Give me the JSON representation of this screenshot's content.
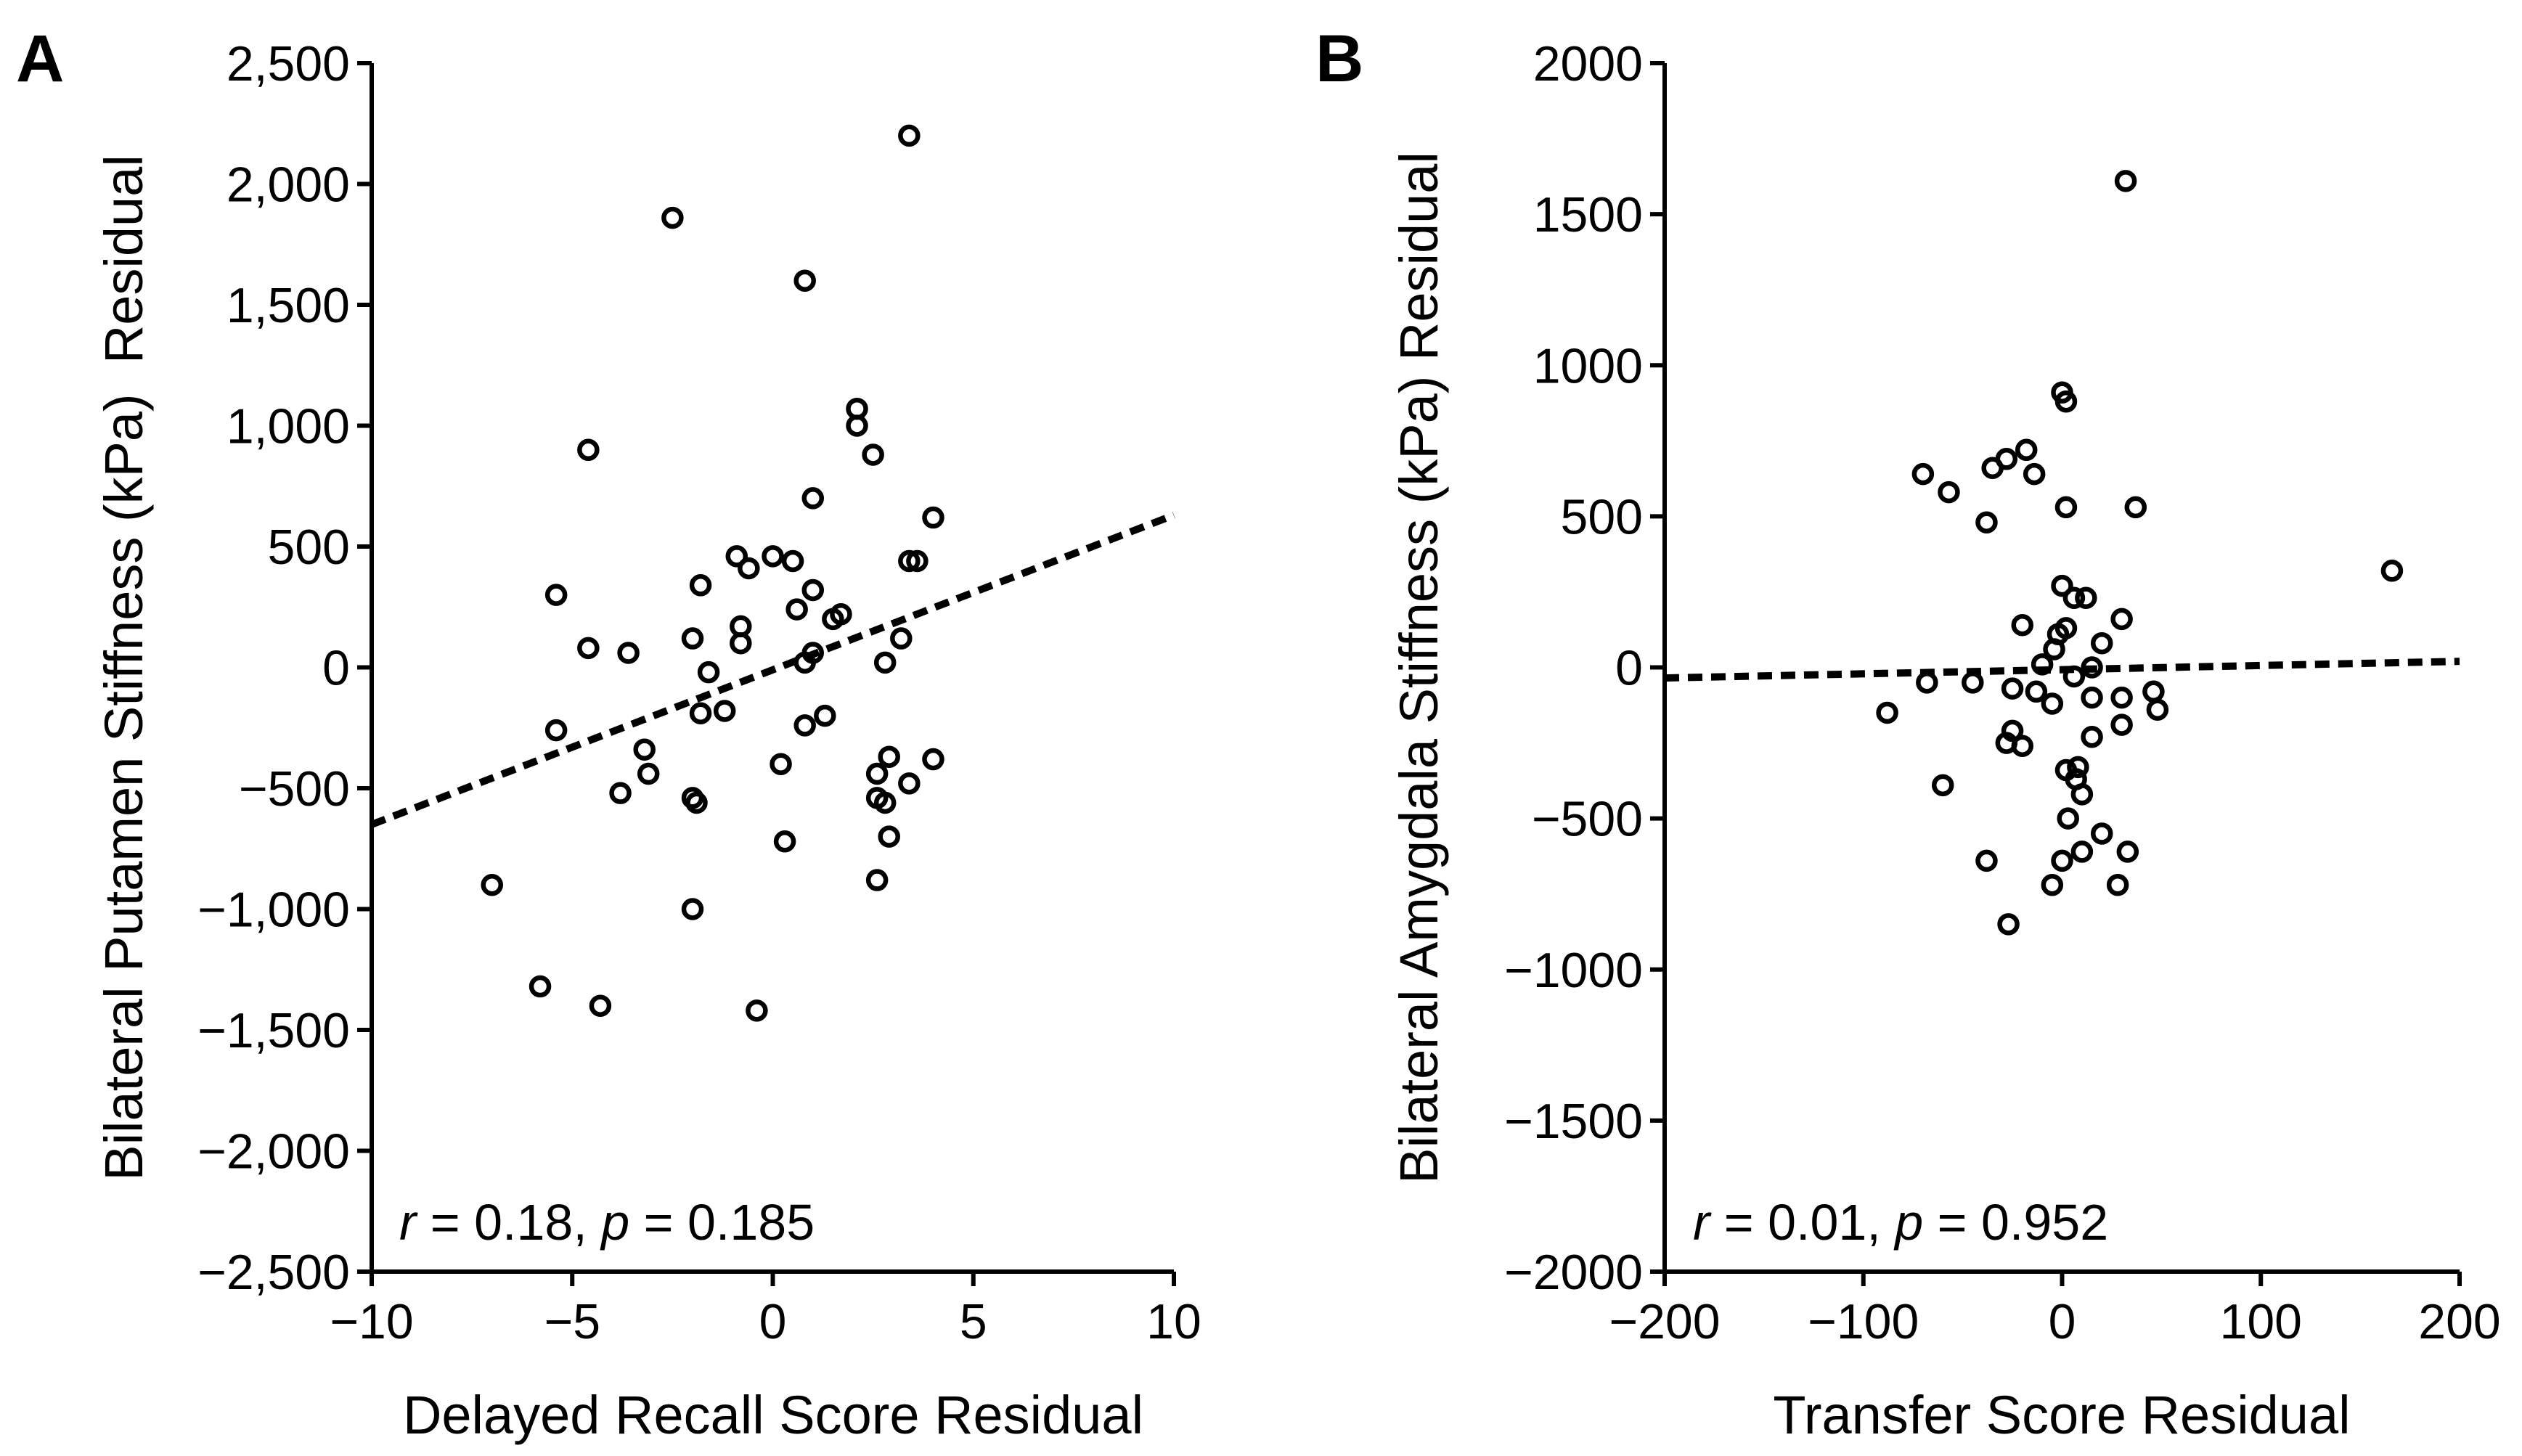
{
  "chart_data": [
    {
      "panel_label": "A",
      "type": "scatter",
      "title": "",
      "xlabel": "Delayed Recall Score Residual",
      "ylabel": "Bilateral Putamen Stiffness (kPa)  Residual",
      "xlim": [
        -10,
        10
      ],
      "ylim": [
        -2500,
        2500
      ],
      "xticks": [
        -10,
        -5,
        0,
        5,
        10
      ],
      "xtick_labels": [
        "−10",
        "−5",
        "0",
        "5",
        "10"
      ],
      "yticks": [
        2500,
        2000,
        1500,
        1000,
        500,
        0,
        -500,
        -1000,
        -1500,
        -2000,
        -2500
      ],
      "ytick_labels": [
        "2,500",
        "2,000",
        "1,500",
        "1,000",
        "500",
        "0",
        "−500",
        "−1,000",
        "−1,500",
        "−2,000",
        "−2,500"
      ],
      "annotation": {
        "r_symbol": "r",
        "r_text": " = 0.18, ",
        "p_symbol": "p",
        "p_text": " = 0.185"
      },
      "fit_line": {
        "x": [
          -10,
          10
        ],
        "y": [
          -650,
          630
        ],
        "style": "dotted"
      },
      "points": [
        {
          "x": 3.4,
          "y": 2200
        },
        {
          "x": -2.5,
          "y": 1860
        },
        {
          "x": 0.8,
          "y": 1600
        },
        {
          "x": 2.1,
          "y": 1070
        },
        {
          "x": 2.1,
          "y": 1000
        },
        {
          "x": -4.6,
          "y": 900
        },
        {
          "x": 2.5,
          "y": 880
        },
        {
          "x": 1.0,
          "y": 700
        },
        {
          "x": 4.0,
          "y": 620
        },
        {
          "x": -0.9,
          "y": 460
        },
        {
          "x": 0.0,
          "y": 460
        },
        {
          "x": 0.5,
          "y": 440
        },
        {
          "x": -0.6,
          "y": 410
        },
        {
          "x": 3.4,
          "y": 440
        },
        {
          "x": 3.6,
          "y": 440
        },
        {
          "x": -1.8,
          "y": 340
        },
        {
          "x": 1.0,
          "y": 320
        },
        {
          "x": -5.4,
          "y": 300
        },
        {
          "x": 0.6,
          "y": 240
        },
        {
          "x": 1.5,
          "y": 200
        },
        {
          "x": 1.7,
          "y": 220
        },
        {
          "x": -0.8,
          "y": 170
        },
        {
          "x": -2.0,
          "y": 120
        },
        {
          "x": 3.2,
          "y": 120
        },
        {
          "x": -0.8,
          "y": 100
        },
        {
          "x": -4.6,
          "y": 80
        },
        {
          "x": -3.6,
          "y": 60
        },
        {
          "x": 1.0,
          "y": 60
        },
        {
          "x": 0.8,
          "y": 20
        },
        {
          "x": 2.8,
          "y": 20
        },
        {
          "x": -1.6,
          "y": -20
        },
        {
          "x": -1.8,
          "y": -190
        },
        {
          "x": -1.2,
          "y": -180
        },
        {
          "x": 1.3,
          "y": -200
        },
        {
          "x": 0.8,
          "y": -240
        },
        {
          "x": -5.4,
          "y": -260
        },
        {
          "x": -3.2,
          "y": -340
        },
        {
          "x": 2.9,
          "y": -370
        },
        {
          "x": 4.0,
          "y": -380
        },
        {
          "x": 0.2,
          "y": -400
        },
        {
          "x": 2.6,
          "y": -440
        },
        {
          "x": -3.1,
          "y": -440
        },
        {
          "x": 3.4,
          "y": -480
        },
        {
          "x": -3.8,
          "y": -520
        },
        {
          "x": -2.0,
          "y": -540
        },
        {
          "x": -1.9,
          "y": -560
        },
        {
          "x": 2.6,
          "y": -540
        },
        {
          "x": 2.8,
          "y": -560
        },
        {
          "x": 2.9,
          "y": -700
        },
        {
          "x": 0.3,
          "y": -720
        },
        {
          "x": 2.6,
          "y": -880
        },
        {
          "x": -7.0,
          "y": -900
        },
        {
          "x": -2.0,
          "y": -1000
        },
        {
          "x": -5.8,
          "y": -1320
        },
        {
          "x": -4.3,
          "y": -1400
        },
        {
          "x": -0.4,
          "y": -1420
        }
      ]
    },
    {
      "panel_label": "B",
      "type": "scatter",
      "title": "",
      "xlabel": "Transfer Score Residual",
      "ylabel": "Bilateral Amygdala Stiffness (kPa) Residual",
      "xlim": [
        -200,
        200
      ],
      "ylim": [
        -2000,
        2000
      ],
      "xticks": [
        -200,
        -100,
        0,
        100,
        200
      ],
      "xtick_labels": [
        "−200",
        "−100",
        "0",
        "100",
        "200"
      ],
      "yticks": [
        2000,
        1500,
        1000,
        500,
        0,
        -500,
        -1000,
        -1500,
        -2000
      ],
      "ytick_labels": [
        "2000",
        "1500",
        "1000",
        "500",
        "0",
        "−500",
        "−1000",
        "−1500",
        "−2000"
      ],
      "annotation": {
        "r_symbol": "r",
        "r_text": " = 0.01, ",
        "p_symbol": "p",
        "p_text": " = 0.952"
      },
      "fit_line": {
        "x": [
          -200,
          200
        ],
        "y": [
          -35,
          20
        ],
        "style": "dotted"
      },
      "points": [
        {
          "x": 32,
          "y": 1610
        },
        {
          "x": 0,
          "y": 910
        },
        {
          "x": 2,
          "y": 880
        },
        {
          "x": -18,
          "y": 720
        },
        {
          "x": -28,
          "y": 690
        },
        {
          "x": -35,
          "y": 660
        },
        {
          "x": -70,
          "y": 640
        },
        {
          "x": -14,
          "y": 640
        },
        {
          "x": -57,
          "y": 580
        },
        {
          "x": 2,
          "y": 530
        },
        {
          "x": 37,
          "y": 530
        },
        {
          "x": -38,
          "y": 480
        },
        {
          "x": 166,
          "y": 320
        },
        {
          "x": 0,
          "y": 270
        },
        {
          "x": 6,
          "y": 230
        },
        {
          "x": 12,
          "y": 230
        },
        {
          "x": 30,
          "y": 160
        },
        {
          "x": -20,
          "y": 140
        },
        {
          "x": 2,
          "y": 130
        },
        {
          "x": -2,
          "y": 110
        },
        {
          "x": 20,
          "y": 80
        },
        {
          "x": -4,
          "y": 60
        },
        {
          "x": -10,
          "y": 10
        },
        {
          "x": 15,
          "y": 0
        },
        {
          "x": 6,
          "y": -30
        },
        {
          "x": -68,
          "y": -50
        },
        {
          "x": -45,
          "y": -50
        },
        {
          "x": -25,
          "y": -70
        },
        {
          "x": -13,
          "y": -80
        },
        {
          "x": 46,
          "y": -80
        },
        {
          "x": 15,
          "y": -100
        },
        {
          "x": 30,
          "y": -100
        },
        {
          "x": -5,
          "y": -120
        },
        {
          "x": -88,
          "y": -150
        },
        {
          "x": 48,
          "y": -140
        },
        {
          "x": 30,
          "y": -190
        },
        {
          "x": -25,
          "y": -210
        },
        {
          "x": -28,
          "y": -250
        },
        {
          "x": -20,
          "y": -260
        },
        {
          "x": 15,
          "y": -230
        },
        {
          "x": 8,
          "y": -330
        },
        {
          "x": 2,
          "y": -340
        },
        {
          "x": 7,
          "y": -370
        },
        {
          "x": -60,
          "y": -390
        },
        {
          "x": 10,
          "y": -420
        },
        {
          "x": 3,
          "y": -500
        },
        {
          "x": 20,
          "y": -550
        },
        {
          "x": 10,
          "y": -610
        },
        {
          "x": 33,
          "y": -610
        },
        {
          "x": 0,
          "y": -640
        },
        {
          "x": -38,
          "y": -640
        },
        {
          "x": -5,
          "y": -720
        },
        {
          "x": 28,
          "y": -720
        },
        {
          "x": -27,
          "y": -850
        }
      ]
    }
  ]
}
